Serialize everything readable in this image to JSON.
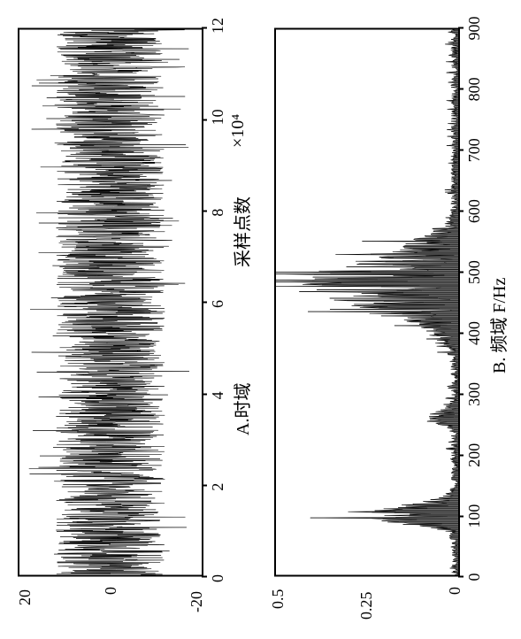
{
  "figure": {
    "background_color": "#ffffff",
    "signal_color": "#000000",
    "tick_color": "#000000",
    "text_color": "#000000",
    "font_family": "serif",
    "tick_fontsize": 18,
    "label_fontsize": 20
  },
  "panel_a": {
    "type": "line",
    "xlabel": "A.时域   采样点数  ×10⁴",
    "xlabel_parts": {
      "title": "A.时域",
      "axis_name": "采样点数",
      "unit": "×10⁴"
    },
    "xlim": [
      0,
      12
    ],
    "ylim": [
      -20,
      20
    ],
    "xticks": [
      0,
      2,
      4,
      6,
      8,
      10,
      12
    ],
    "yticks": [
      -20,
      0,
      20
    ],
    "line_color": "#000000",
    "line_width": 0.5,
    "signal": {
      "description": "dense noise filling band approximately ±12 with spikes to ±18",
      "mean": 0,
      "band_amplitude": 12,
      "spike_amplitude": 18,
      "density": "very high (appears solid black in center band)"
    }
  },
  "panel_b": {
    "type": "line",
    "xlabel": "B. 频域 F/Hz",
    "xlim": [
      0,
      900
    ],
    "ylim": [
      0,
      0.5
    ],
    "xticks": [
      0,
      100,
      200,
      300,
      400,
      500,
      600,
      700,
      800,
      900
    ],
    "yticks": [
      0,
      0.25,
      0.5
    ],
    "line_color": "#000000",
    "line_width": 0.5,
    "spectrum": {
      "description": "baseline near 0 with peak clusters",
      "baseline": 0.0,
      "clusters": [
        {
          "center_hz": 100,
          "peak": 0.3,
          "width": 40
        },
        {
          "center_hz": 260,
          "peak": 0.1,
          "width": 30
        },
        {
          "center_hz": 480,
          "peak": 0.42,
          "width": 120
        },
        {
          "center_hz": 540,
          "peak": 0.15,
          "width": 60
        }
      ],
      "noise_floor": 0.02
    }
  }
}
